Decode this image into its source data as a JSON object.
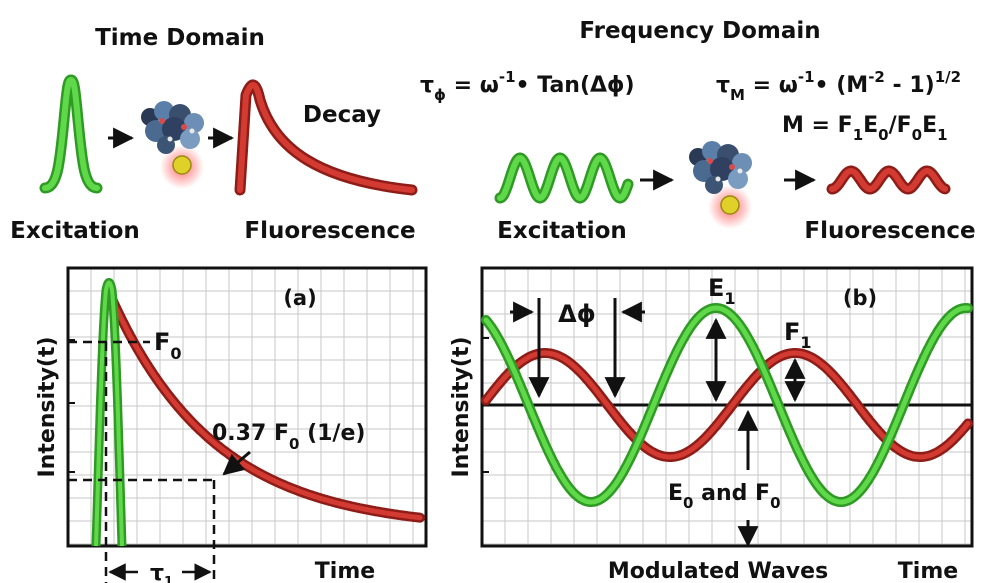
{
  "time_domain": {
    "title": "Time Domain",
    "excitation_label": "Excitation",
    "decay_label": "Decay",
    "fluorescence_label": "Fluorescence"
  },
  "frequency_domain": {
    "title": "Frequency Domain",
    "eq_tau_phi": {
      "tau": "τ",
      "sub": "ϕ",
      "rest": " = ω",
      "sup": "-1",
      "tail": "• Tan(Δϕ)"
    },
    "eq_tau_m": {
      "tau": "τ",
      "sub": "M",
      "rest": " = ω",
      "sup": "-1",
      "mid": "• (M",
      "sup2": "-2",
      "tail": " - 1)",
      "sup3": "1/2"
    },
    "eq_m": {
      "a": "M = F",
      "s1": "1",
      "b": "E",
      "s2": "0",
      "c": "/F",
      "s3": "0",
      "d": "E",
      "s4": "1"
    },
    "excitation_label": "Excitation",
    "fluorescence_label": "Fluorescence"
  },
  "panel_a": {
    "tag": "(a)",
    "ylabel": "Intensity(t)",
    "xlabel": "Time",
    "f0": "F",
    "f0_sub": "0",
    "annotation": "0.37 F",
    "annotation_sub": "0",
    "annotation_tail": " (1/e)",
    "tau": "τ",
    "tau_sub": "1"
  },
  "panel_b": {
    "tag": "(b)",
    "ylabel": "Intensity(t)",
    "xlabel": "Time",
    "bottom_label": "Modulated Waves",
    "dphi": "Δϕ",
    "e1": "E",
    "e1_sub": "1",
    "f1": "F",
    "f1_sub": "1",
    "e0f0_a": "E",
    "e0f0_s1": "0",
    "e0f0_b": " and F",
    "e0f0_s2": "0"
  },
  "colors": {
    "excitation": "#5fd84a",
    "excitation_edge": "#2f9a24",
    "fluorescence": "#d23a32",
    "fluorescence_edge": "#8e1d18",
    "grid": "#c7c7c7"
  }
}
